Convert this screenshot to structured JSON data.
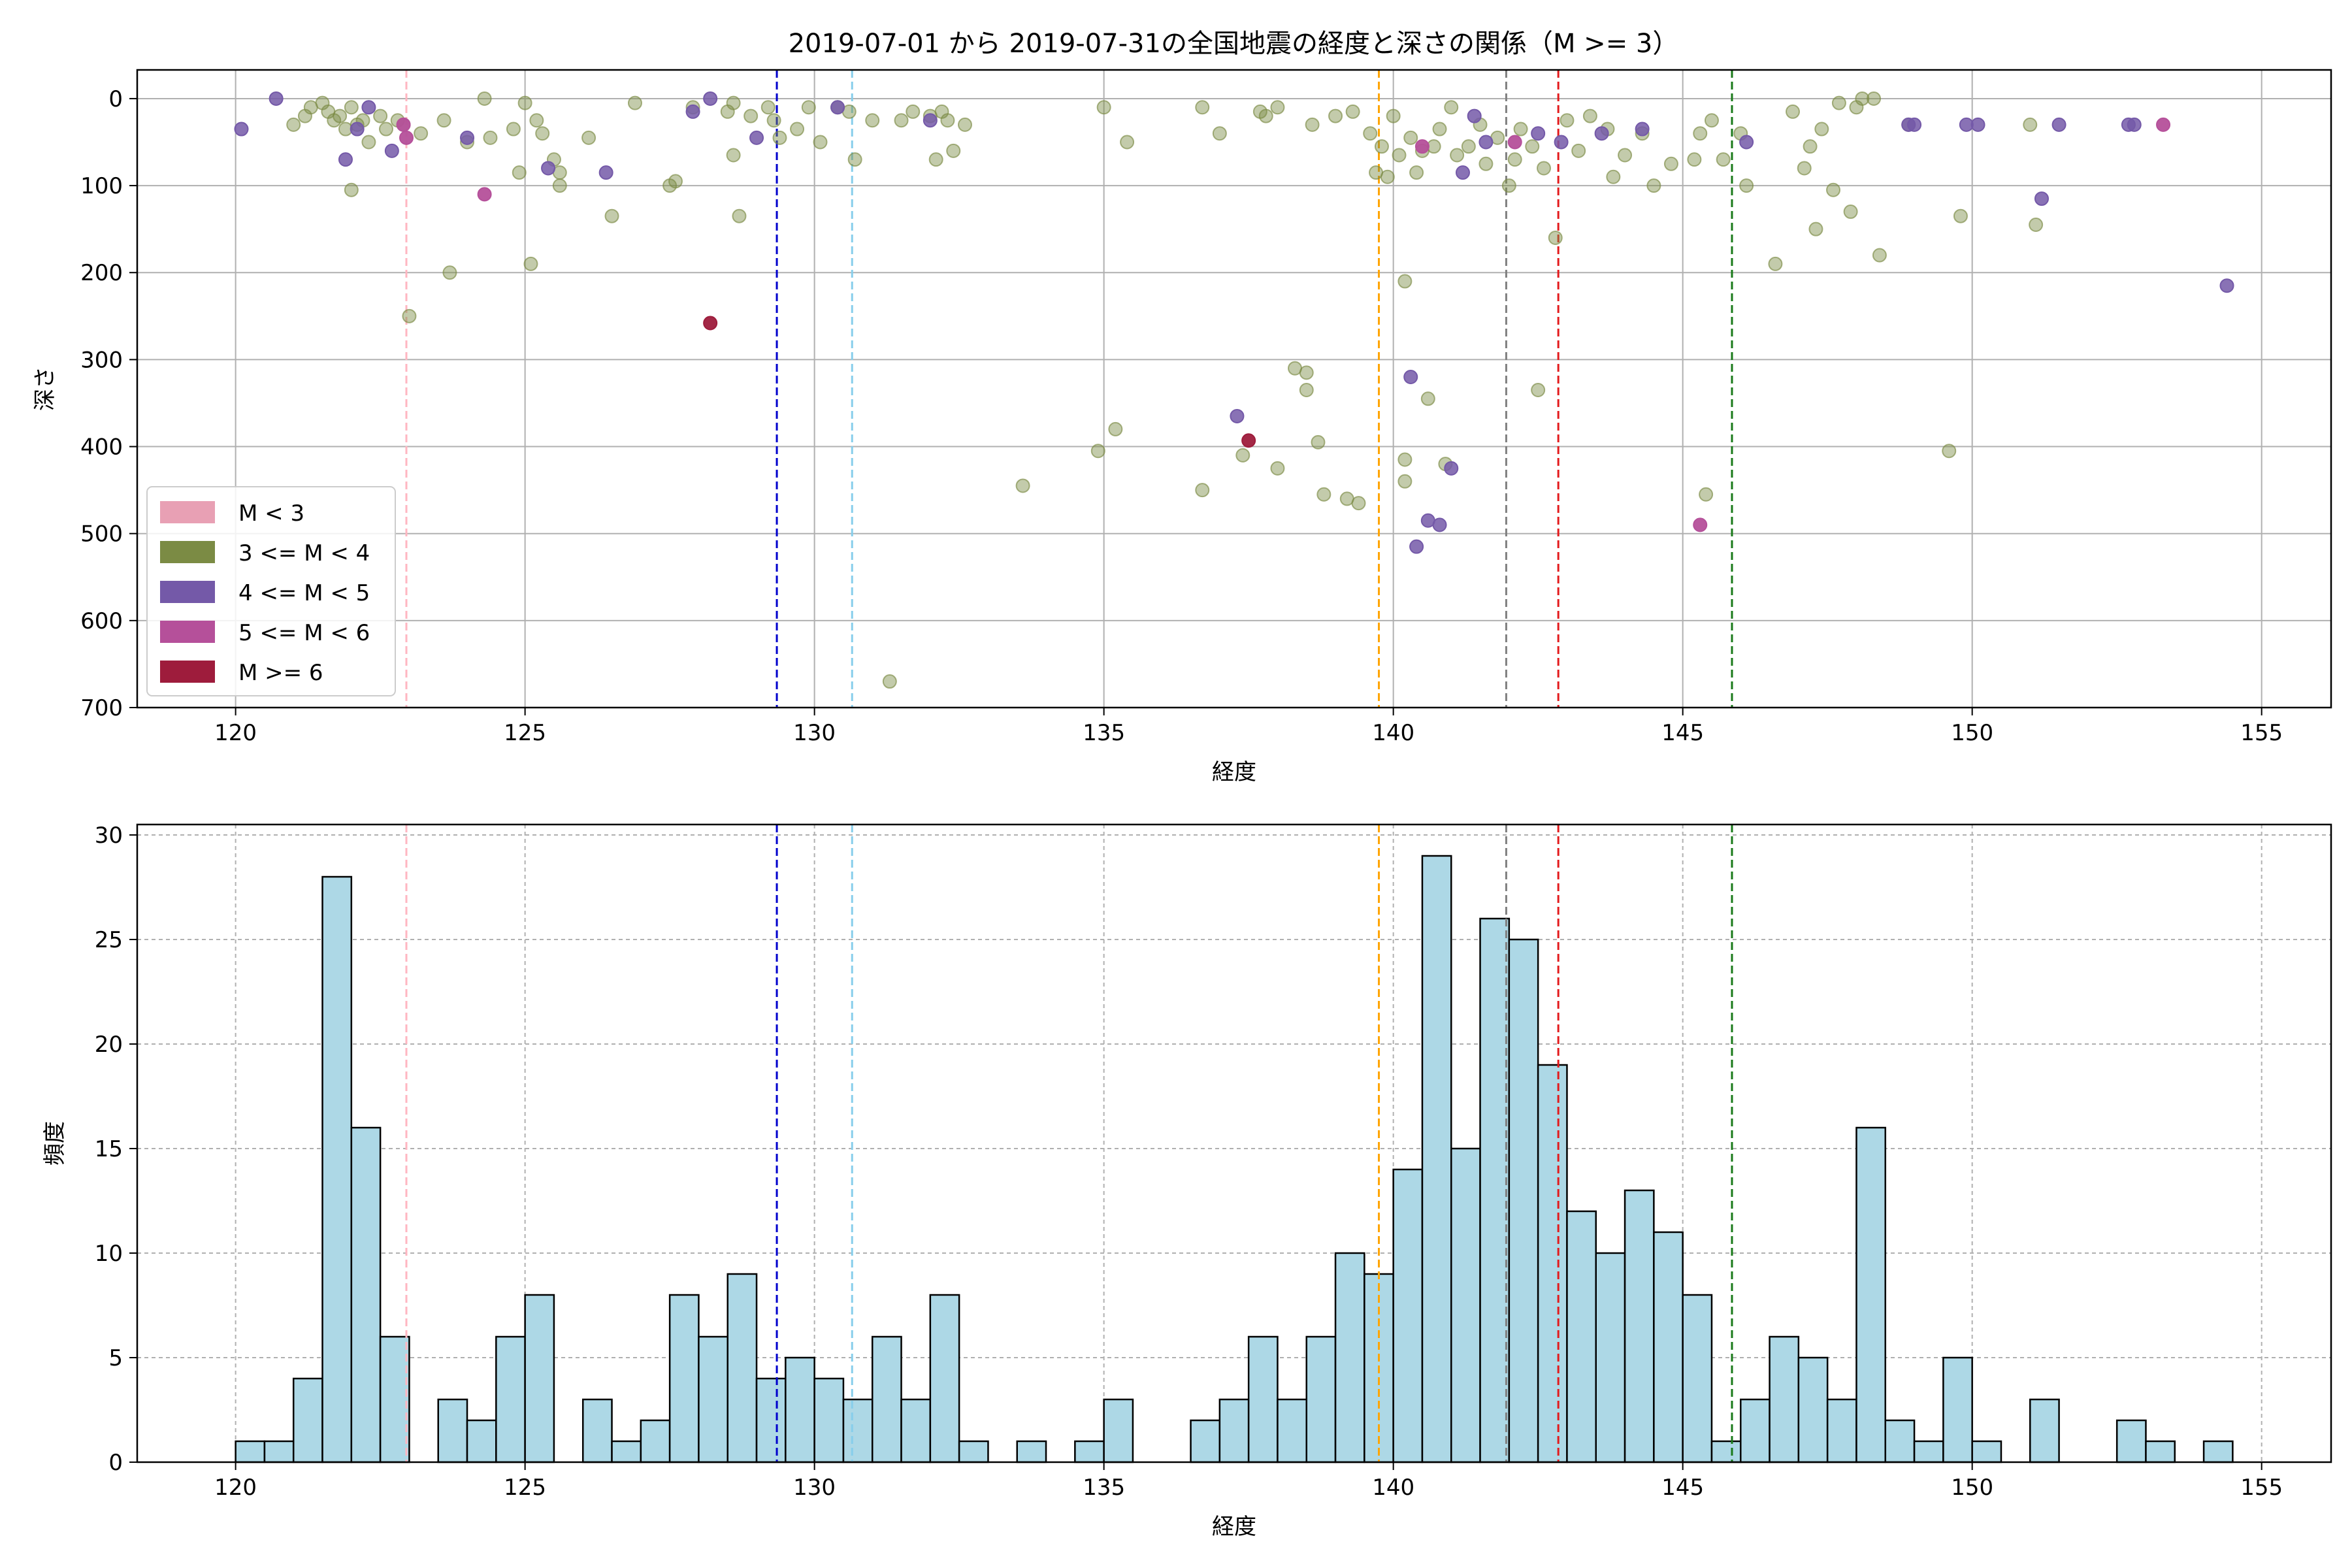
{
  "figure": {
    "title": "2019-07-01 から 2019-07-31の全国地震の経度と深さの関係（M >= 3）"
  },
  "chart_data": [
    {
      "type": "scatter",
      "xlabel": "経度",
      "ylabel": "深さ",
      "xlim": [
        118.3,
        156.2
      ],
      "ylim": [
        700,
        -33
      ],
      "y_inverted": true,
      "xticks": [
        "120",
        "125",
        "130",
        "135",
        "140",
        "145",
        "150",
        "155"
      ],
      "yticks": [
        "0",
        "100",
        "200",
        "300",
        "400",
        "500",
        "600",
        "700"
      ],
      "grid": true,
      "legend_position": "lower-left",
      "legend": [
        {
          "label": "M < 3",
          "color": "#e8a0b4"
        },
        {
          "label": "3 <= M < 4",
          "color": "#7b8b44"
        },
        {
          "label": "4 <= M < 5",
          "color": "#7459a8"
        },
        {
          "label": "5 <= M < 6",
          "color": "#b5509a"
        },
        {
          "label": "M >= 6",
          "color": "#9e1c3c"
        }
      ],
      "vlines": [
        {
          "x": 122.95,
          "color": "#ffb6c1"
        },
        {
          "x": 129.35,
          "color": "#0000cd"
        },
        {
          "x": 130.65,
          "color": "#87ceeb"
        },
        {
          "x": 139.75,
          "color": "#ffa500"
        },
        {
          "x": 141.95,
          "color": "#808080"
        },
        {
          "x": 142.85,
          "color": "#e31a1c"
        },
        {
          "x": 145.85,
          "color": "#1a7a1a"
        }
      ],
      "series": [
        {
          "key": "m3to4",
          "color": "#7b8b44",
          "points": [
            [
              121.0,
              30
            ],
            [
              121.2,
              20
            ],
            [
              121.3,
              10
            ],
            [
              121.5,
              5
            ],
            [
              121.6,
              15
            ],
            [
              121.7,
              25
            ],
            [
              121.8,
              20
            ],
            [
              121.9,
              35
            ],
            [
              122.0,
              10
            ],
            [
              122.1,
              30
            ],
            [
              122.2,
              25
            ],
            [
              122.0,
              105
            ],
            [
              122.3,
              50
            ],
            [
              122.5,
              20
            ],
            [
              122.6,
              35
            ],
            [
              122.8,
              25
            ],
            [
              122.9,
              30
            ],
            [
              123.0,
              250
            ],
            [
              123.2,
              40
            ],
            [
              123.6,
              25
            ],
            [
              123.7,
              200
            ],
            [
              124.0,
              50
            ],
            [
              124.3,
              0
            ],
            [
              124.4,
              45
            ],
            [
              124.8,
              35
            ],
            [
              124.9,
              85
            ],
            [
              125.0,
              5
            ],
            [
              125.1,
              190
            ],
            [
              125.2,
              25
            ],
            [
              125.3,
              40
            ],
            [
              125.5,
              70
            ],
            [
              125.6,
              85
            ],
            [
              125.6,
              100
            ],
            [
              126.1,
              45
            ],
            [
              126.5,
              135
            ],
            [
              126.9,
              5
            ],
            [
              127.5,
              100
            ],
            [
              127.6,
              95
            ],
            [
              127.9,
              10
            ],
            [
              128.5,
              15
            ],
            [
              128.6,
              5
            ],
            [
              128.6,
              65
            ],
            [
              128.7,
              135
            ],
            [
              128.9,
              20
            ],
            [
              129.2,
              10
            ],
            [
              129.3,
              25
            ],
            [
              129.4,
              45
            ],
            [
              129.7,
              35
            ],
            [
              129.9,
              10
            ],
            [
              130.1,
              50
            ],
            [
              130.4,
              10
            ],
            [
              130.6,
              15
            ],
            [
              130.7,
              70
            ],
            [
              131.0,
              25
            ],
            [
              131.3,
              670
            ],
            [
              131.5,
              25
            ],
            [
              131.7,
              15
            ],
            [
              132.0,
              20
            ],
            [
              132.2,
              15
            ],
            [
              132.1,
              70
            ],
            [
              132.3,
              25
            ],
            [
              132.4,
              60
            ],
            [
              132.6,
              30
            ],
            [
              133.6,
              445
            ],
            [
              135.0,
              10
            ],
            [
              134.9,
              405
            ],
            [
              135.2,
              380
            ],
            [
              135.4,
              50
            ],
            [
              136.7,
              450
            ],
            [
              136.7,
              10
            ],
            [
              137.0,
              40
            ],
            [
              137.4,
              410
            ],
            [
              137.7,
              15
            ],
            [
              137.8,
              20
            ],
            [
              138.0,
              10
            ],
            [
              138.0,
              425
            ],
            [
              138.3,
              310
            ],
            [
              138.5,
              315
            ],
            [
              138.5,
              335
            ],
            [
              138.6,
              30
            ],
            [
              138.7,
              395
            ],
            [
              138.8,
              455
            ],
            [
              139.0,
              20
            ],
            [
              139.2,
              460
            ],
            [
              139.3,
              15
            ],
            [
              139.4,
              465
            ],
            [
              139.6,
              40
            ],
            [
              139.7,
              85
            ],
            [
              139.8,
              55
            ],
            [
              139.9,
              90
            ],
            [
              140.0,
              20
            ],
            [
              140.1,
              65
            ],
            [
              140.2,
              210
            ],
            [
              140.2,
              415
            ],
            [
              140.2,
              440
            ],
            [
              140.3,
              45
            ],
            [
              140.4,
              85
            ],
            [
              140.5,
              60
            ],
            [
              140.6,
              345
            ],
            [
              140.7,
              55
            ],
            [
              140.8,
              35
            ],
            [
              140.9,
              420
            ],
            [
              141.0,
              10
            ],
            [
              141.1,
              65
            ],
            [
              141.3,
              55
            ],
            [
              141.5,
              30
            ],
            [
              141.6,
              75
            ],
            [
              141.8,
              45
            ],
            [
              142.0,
              100
            ],
            [
              142.1,
              70
            ],
            [
              142.2,
              35
            ],
            [
              142.4,
              55
            ],
            [
              142.5,
              335
            ],
            [
              142.6,
              80
            ],
            [
              142.8,
              160
            ],
            [
              143.0,
              25
            ],
            [
              143.2,
              60
            ],
            [
              143.4,
              20
            ],
            [
              143.7,
              35
            ],
            [
              143.8,
              90
            ],
            [
              144.0,
              65
            ],
            [
              144.3,
              40
            ],
            [
              144.5,
              100
            ],
            [
              144.8,
              75
            ],
            [
              145.2,
              70
            ],
            [
              145.3,
              40
            ],
            [
              145.4,
              455
            ],
            [
              145.5,
              25
            ],
            [
              145.7,
              70
            ],
            [
              146.0,
              40
            ],
            [
              146.1,
              100
            ],
            [
              146.6,
              190
            ],
            [
              146.9,
              15
            ],
            [
              147.1,
              80
            ],
            [
              147.2,
              55
            ],
            [
              147.3,
              150
            ],
            [
              147.4,
              35
            ],
            [
              147.6,
              105
            ],
            [
              147.7,
              5
            ],
            [
              147.9,
              130
            ],
            [
              148.0,
              10
            ],
            [
              148.1,
              0
            ],
            [
              148.3,
              0
            ],
            [
              148.4,
              180
            ],
            [
              148.9,
              30
            ],
            [
              149.6,
              405
            ],
            [
              149.8,
              135
            ],
            [
              151.1,
              145
            ],
            [
              151.0,
              30
            ]
          ]
        },
        {
          "key": "m4to5",
          "color": "#7459a8",
          "points": [
            [
              120.1,
              35
            ],
            [
              120.7,
              0
            ],
            [
              121.9,
              70
            ],
            [
              122.1,
              35
            ],
            [
              122.3,
              10
            ],
            [
              122.7,
              60
            ],
            [
              124.0,
              45
            ],
            [
              125.4,
              80
            ],
            [
              126.4,
              85
            ],
            [
              127.9,
              15
            ],
            [
              128.2,
              0
            ],
            [
              129.0,
              45
            ],
            [
              130.4,
              10
            ],
            [
              132.0,
              25
            ],
            [
              137.3,
              365
            ],
            [
              140.3,
              320
            ],
            [
              140.6,
              485
            ],
            [
              140.8,
              490
            ],
            [
              140.4,
              515
            ],
            [
              141.0,
              425
            ],
            [
              141.2,
              85
            ],
            [
              141.4,
              20
            ],
            [
              141.6,
              50
            ],
            [
              142.5,
              40
            ],
            [
              142.9,
              50
            ],
            [
              143.6,
              40
            ],
            [
              144.3,
              35
            ],
            [
              146.1,
              50
            ],
            [
              148.9,
              30
            ],
            [
              149.0,
              30
            ],
            [
              149.9,
              30
            ],
            [
              150.1,
              30
            ],
            [
              151.2,
              115
            ],
            [
              151.5,
              30
            ],
            [
              152.7,
              30
            ],
            [
              152.8,
              30
            ],
            [
              154.4,
              215
            ]
          ]
        },
        {
          "key": "m5to6",
          "color": "#b5509a",
          "points": [
            [
              122.9,
              30
            ],
            [
              122.95,
              45
            ],
            [
              124.3,
              110
            ],
            [
              140.5,
              55
            ],
            [
              142.1,
              50
            ],
            [
              145.3,
              490
            ],
            [
              153.3,
              30
            ]
          ]
        },
        {
          "key": "m6plus",
          "color": "#9e1c3c",
          "points": [
            [
              128.2,
              258
            ],
            [
              137.5,
              393
            ]
          ]
        }
      ]
    },
    {
      "type": "bar",
      "subtype": "histogram",
      "xlabel": "経度",
      "ylabel": "頻度",
      "xlim": [
        118.3,
        156.2
      ],
      "ylim": [
        0,
        30.5
      ],
      "xticks": [
        "120",
        "125",
        "130",
        "135",
        "140",
        "145",
        "150",
        "155"
      ],
      "yticks": [
        "0",
        "5",
        "10",
        "15",
        "20",
        "25",
        "30"
      ],
      "grid": true,
      "bar_color": "#add8e6",
      "bar_edge_color": "#000000",
      "bin_start": 120.0,
      "bin_width": 0.5,
      "values": [
        1,
        1,
        4,
        28,
        16,
        6,
        0,
        3,
        2,
        6,
        8,
        0,
        3,
        1,
        2,
        8,
        6,
        9,
        4,
        5,
        4,
        3,
        6,
        3,
        8,
        1,
        0,
        1,
        0,
        1,
        3,
        0,
        0,
        2,
        3,
        6,
        3,
        6,
        10,
        9,
        14,
        29,
        15,
        26,
        25,
        19,
        12,
        10,
        13,
        11,
        8,
        1,
        3,
        6,
        5,
        3,
        16,
        2,
        1,
        5,
        1,
        0,
        3,
        0,
        0,
        2,
        1,
        0,
        1
      ],
      "vlines": [
        {
          "x": 122.95,
          "color": "#ffb6c1"
        },
        {
          "x": 129.35,
          "color": "#0000cd"
        },
        {
          "x": 130.65,
          "color": "#87ceeb"
        },
        {
          "x": 139.75,
          "color": "#ffa500"
        },
        {
          "x": 141.95,
          "color": "#808080"
        },
        {
          "x": 142.85,
          "color": "#e31a1c"
        },
        {
          "x": 145.85,
          "color": "#1a7a1a"
        }
      ]
    }
  ]
}
